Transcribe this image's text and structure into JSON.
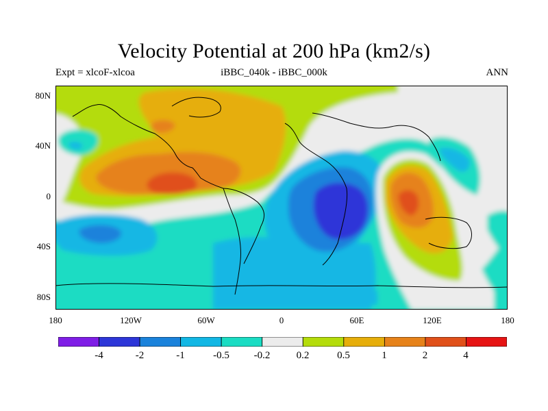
{
  "title": "Velocity Potential at 200 hPa (km2/s)",
  "subtitle_left": "Expt = xlcoF-xlcoa",
  "subtitle_center": "iBBC_040k - iBBC_000k",
  "subtitle_right": "ANN",
  "lat_labels": [
    "80N",
    "40N",
    "0",
    "40S",
    "80S"
  ],
  "lon_labels": [
    "180",
    "120W",
    "60W",
    "0",
    "60E",
    "120E",
    "180"
  ],
  "colorbar": {
    "labels": [
      "-4",
      "-2",
      "-1",
      "-0.5",
      "-0.2",
      "0.2",
      "0.5",
      "1",
      "2",
      "4"
    ],
    "colors": [
      "#7f1ee6",
      "#2d36d8",
      "#1a82db",
      "#12b7e4",
      "#1adcc3",
      "#ececec",
      "#b4dc0a",
      "#e6ae0a",
      "#e6821a",
      "#e0501a",
      "#e61414"
    ]
  },
  "palette": {
    "neg4": "#2d36d8",
    "neg2": "#1a82db",
    "neg1": "#12b7e4",
    "neg05": "#1adcc3",
    "zero": "#ececec",
    "pos05": "#b4dc0a",
    "pos1": "#e6ae0a",
    "pos2": "#e6821a",
    "pos4": "#e0501a",
    "pos6": "#e61414"
  }
}
